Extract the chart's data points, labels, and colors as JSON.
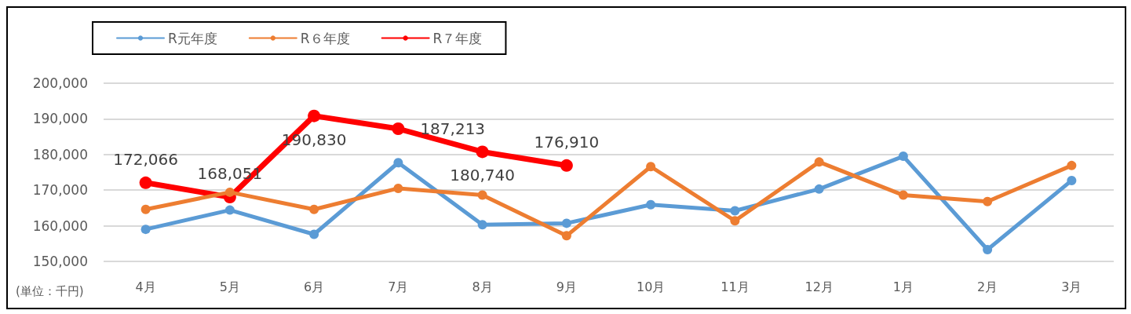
{
  "chart_data": {
    "type": "line",
    "categories": [
      "4月",
      "5月",
      "6月",
      "7月",
      "8月",
      "9月",
      "10月",
      "11月",
      "12月",
      "1月",
      "2月",
      "3月"
    ],
    "series": [
      {
        "name": "R元年度",
        "color": "#5b9bd5",
        "values": [
          159000,
          164400,
          157600,
          177700,
          160300,
          160700,
          165900,
          164200,
          170300,
          179500,
          153300,
          172700
        ]
      },
      {
        "name": "R６年度",
        "color": "#ed7d31",
        "values": [
          164600,
          169400,
          164600,
          170500,
          168600,
          157200,
          176600,
          161400,
          177900,
          168600,
          166800,
          176900
        ]
      },
      {
        "name": "R７年度",
        "color": "#ff0000",
        "values": [
          172066,
          168051,
          190830,
          187213,
          180740,
          176910,
          null,
          null,
          null,
          null,
          null,
          null
        ],
        "value_labels": [
          "172,066",
          "168,051",
          "190,830",
          "187,213",
          "180,740",
          "176,910",
          null,
          null,
          null,
          null,
          null,
          null
        ]
      }
    ],
    "ylim": [
      150000,
      200000
    ],
    "yticks": [
      {
        "value": 150000,
        "label": "150,000"
      },
      {
        "value": 160000,
        "label": "160,000"
      },
      {
        "value": 170000,
        "label": "170,000"
      },
      {
        "value": 180000,
        "label": "180,000"
      },
      {
        "value": 190000,
        "label": "190,000"
      },
      {
        "value": 200000,
        "label": "200,000"
      }
    ],
    "grid": "y",
    "legend": "top left",
    "marker": "circle",
    "line_style": "solid",
    "annotations": [
      "(単位：千円)"
    ]
  }
}
